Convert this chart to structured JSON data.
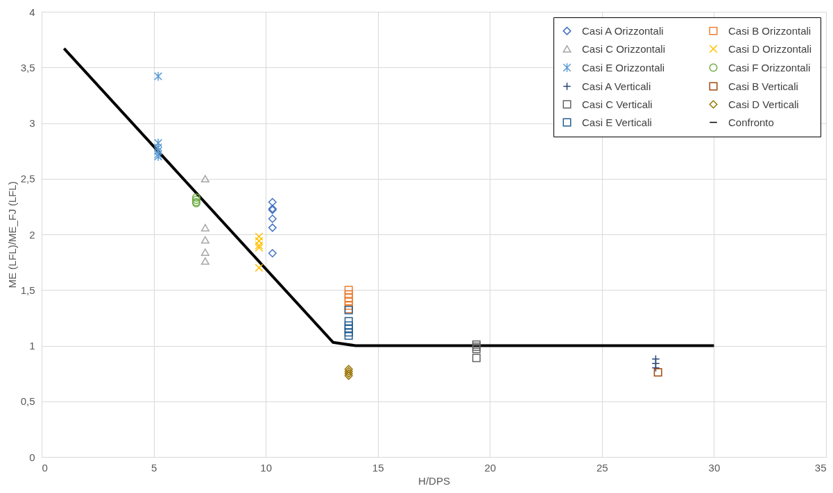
{
  "chart_data": {
    "type": "scatter",
    "xlabel": "H/DPS",
    "ylabel": "ME (LFL)/ME_FJ (LFL)",
    "xlim": [
      0,
      35
    ],
    "xticks": [
      0,
      5,
      10,
      15,
      20,
      25,
      30,
      35
    ],
    "ylim": [
      0,
      4
    ],
    "yticks": [
      0,
      {
        "value": 0.5,
        "label": "0,5"
      },
      1,
      {
        "value": 1.5,
        "label": "1,5"
      },
      2,
      {
        "value": 2.5,
        "label": "2,5"
      },
      3,
      {
        "value": 3.5,
        "label": "3,5"
      },
      4
    ],
    "grid": true,
    "legend": "top right",
    "series": [
      {
        "name": "Casi A Orizzontali",
        "color": "#4472c4",
        "marker": "diamond",
        "x": [
          10.3,
          10.3,
          10.3,
          10.3,
          10.3,
          10.3
        ],
        "values": [
          2.29,
          2.23,
          2.22,
          2.14,
          2.06,
          1.83
        ]
      },
      {
        "name": "Casi B Orizzontali",
        "color": "#ed7d31",
        "marker": "square",
        "x": [
          13.7,
          13.7,
          13.7,
          13.7,
          13.7,
          13.7
        ],
        "values": [
          1.5,
          1.46,
          1.43,
          1.4,
          1.36,
          1.33
        ]
      },
      {
        "name": "Casi C Orizzontali",
        "color": "#a5a5a5",
        "marker": "triangle",
        "x": [
          7.3,
          7.3,
          7.3,
          7.3,
          7.3
        ],
        "values": [
          2.5,
          2.06,
          1.95,
          1.84,
          1.76
        ]
      },
      {
        "name": "Casi D Orizzontali",
        "color": "#ffc000",
        "marker": "cross",
        "x": [
          9.7,
          9.7,
          9.7,
          9.7,
          9.7
        ],
        "values": [
          1.98,
          1.94,
          1.9,
          1.88,
          1.7
        ]
      },
      {
        "name": "Casi E Orizzontali",
        "color": "#5b9bd5",
        "x": [
          5.2,
          5.2,
          5.2,
          5.2,
          5.2,
          5.2
        ],
        "values": [
          3.42,
          2.82,
          2.78,
          2.75,
          2.72,
          2.7
        ]
      },
      {
        "name": "Casi F Orizzontali",
        "color": "#70ad47",
        "marker": "circle",
        "x": [
          6.9,
          6.9,
          6.9,
          6.9
        ],
        "values": [
          2.33,
          2.31,
          2.29,
          2.28
        ]
      },
      {
        "name": "Casi A Verticali",
        "color": "#264478",
        "marker": "plus",
        "x": [
          27.4,
          27.4,
          27.4
        ],
        "values": [
          0.88,
          0.84,
          0.8
        ]
      },
      {
        "name": "Casi B Verticali",
        "color": "#9e480e",
        "marker": "square",
        "x": [
          27.5
        ],
        "values": [
          0.76
        ]
      },
      {
        "name": "Casi C Verticali",
        "color": "#636363",
        "marker": "square",
        "x": [
          19.4,
          19.4,
          19.4,
          19.4
        ],
        "values": [
          1.01,
          0.99,
          0.97,
          0.89
        ]
      },
      {
        "name": "Casi D Verticali",
        "color": "#997300",
        "marker": "diamond",
        "x": [
          13.7,
          13.7,
          13.7,
          13.7
        ],
        "values": [
          0.79,
          0.77,
          0.75,
          0.73
        ]
      },
      {
        "name": "Casi E Verticali",
        "color": "#255e91",
        "marker": "square",
        "x": [
          13.7,
          13.7,
          13.7,
          13.7,
          13.7,
          13.7
        ],
        "values": [
          1.32,
          1.22,
          1.18,
          1.15,
          1.12,
          1.09
        ]
      },
      {
        "name": "Confronto",
        "color": "#000000",
        "type": "line",
        "marker": "none",
        "x": [
          1,
          13,
          14,
          30
        ],
        "values": [
          3.67,
          1.03,
          1.0,
          1.0
        ]
      }
    ]
  }
}
